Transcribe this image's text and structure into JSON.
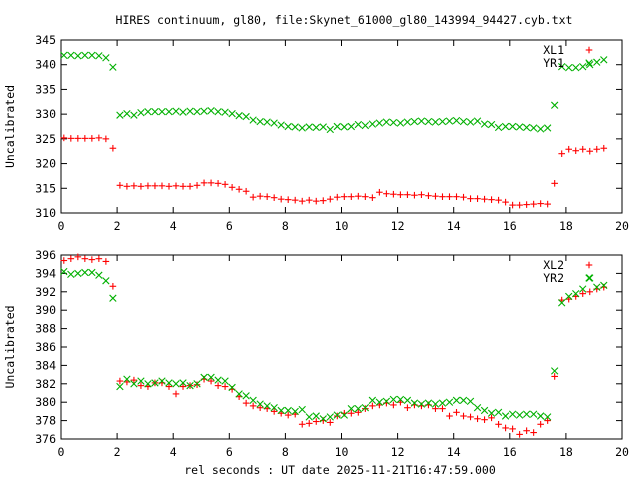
{
  "title": "HIRES continuum, gl80, file:Skynet_61000_gl80_143994_94427.cyb.txt",
  "xlabel": "rel seconds : UT date 2025-11-21T16:47:59.000",
  "chart_data": [
    {
      "type": "scatter",
      "ylabel": "Uncalibrated",
      "xlim": [
        0,
        20
      ],
      "ylim": [
        310,
        345
      ],
      "xticks": [
        0,
        2,
        4,
        6,
        8,
        10,
        12,
        14,
        16,
        18,
        20
      ],
      "yticks": [
        310,
        315,
        320,
        325,
        330,
        335,
        340,
        345
      ],
      "legend": "top-right",
      "series": [
        {
          "name": "XL1",
          "marker": "plus",
          "color": "#ff0000",
          "x": [
            0.1,
            0.35,
            0.6,
            0.85,
            1.1,
            1.35,
            1.6,
            1.85,
            2.1,
            2.35,
            2.6,
            2.85,
            3.1,
            3.35,
            3.6,
            3.85,
            4.1,
            4.35,
            4.6,
            4.85,
            5.1,
            5.35,
            5.6,
            5.85,
            6.1,
            6.35,
            6.6,
            6.85,
            7.1,
            7.35,
            7.6,
            7.85,
            8.1,
            8.35,
            8.6,
            8.85,
            9.1,
            9.35,
            9.6,
            9.85,
            10.1,
            10.35,
            10.6,
            10.85,
            11.1,
            11.35,
            11.6,
            11.85,
            12.1,
            12.35,
            12.6,
            12.85,
            13.1,
            13.35,
            13.6,
            13.85,
            14.1,
            14.35,
            14.6,
            14.85,
            15.1,
            15.35,
            15.6,
            15.85,
            16.1,
            16.35,
            16.6,
            16.85,
            17.1,
            17.35,
            17.6,
            17.85,
            18.1,
            18.35,
            18.6,
            18.85,
            19.1,
            19.35
          ],
          "y": [
            325.2,
            325.1,
            325.1,
            325.1,
            325.1,
            325.2,
            325.0,
            323.1,
            315.6,
            315.4,
            315.5,
            315.4,
            315.5,
            315.5,
            315.5,
            315.4,
            315.5,
            315.4,
            315.4,
            315.6,
            316.1,
            316.1,
            316.0,
            315.8,
            315.2,
            314.8,
            314.4,
            313.2,
            313.4,
            313.3,
            313.1,
            312.8,
            312.7,
            312.6,
            312.4,
            312.6,
            312.4,
            312.5,
            312.8,
            313.2,
            313.3,
            313.3,
            313.4,
            313.3,
            313.1,
            314.2,
            313.9,
            313.8,
            313.7,
            313.7,
            313.6,
            313.7,
            313.5,
            313.4,
            313.3,
            313.3,
            313.3,
            313.2,
            312.9,
            312.9,
            312.8,
            312.7,
            312.6,
            312.2,
            311.6,
            311.6,
            311.7,
            311.8,
            311.9,
            311.8,
            316.0,
            322.0,
            322.9,
            322.6,
            322.9,
            322.5,
            322.9,
            323.1
          ]
        },
        {
          "name": "YR1",
          "marker": "cross",
          "color": "#00b000",
          "x": [
            0.1,
            0.35,
            0.6,
            0.85,
            1.1,
            1.35,
            1.6,
            1.85,
            2.1,
            2.35,
            2.6,
            2.85,
            3.1,
            3.35,
            3.6,
            3.85,
            4.1,
            4.35,
            4.6,
            4.85,
            5.1,
            5.35,
            5.6,
            5.85,
            6.1,
            6.35,
            6.6,
            6.85,
            7.1,
            7.35,
            7.6,
            7.85,
            8.1,
            8.35,
            8.6,
            8.85,
            9.1,
            9.35,
            9.6,
            9.85,
            10.1,
            10.35,
            10.6,
            10.85,
            11.1,
            11.35,
            11.6,
            11.85,
            12.1,
            12.35,
            12.6,
            12.85,
            13.1,
            13.35,
            13.6,
            13.85,
            14.1,
            14.35,
            14.6,
            14.85,
            15.1,
            15.35,
            15.6,
            15.85,
            16.1,
            16.35,
            16.6,
            16.85,
            17.1,
            17.35,
            17.6,
            17.85,
            18.1,
            18.35,
            18.6,
            18.85,
            19.1,
            19.35
          ],
          "y": [
            341.9,
            341.9,
            341.8,
            341.9,
            341.9,
            341.8,
            341.4,
            339.5,
            329.8,
            330.1,
            329.8,
            330.3,
            330.5,
            330.5,
            330.5,
            330.5,
            330.6,
            330.4,
            330.6,
            330.5,
            330.6,
            330.7,
            330.5,
            330.4,
            330.1,
            329.7,
            329.5,
            328.8,
            328.5,
            328.4,
            328.2,
            327.8,
            327.5,
            327.4,
            327.2,
            327.4,
            327.3,
            327.4,
            326.9,
            327.5,
            327.4,
            327.5,
            327.9,
            327.7,
            328.0,
            328.2,
            328.4,
            328.3,
            328.2,
            328.4,
            328.5,
            328.6,
            328.5,
            328.4,
            328.5,
            328.6,
            328.7,
            328.5,
            328.4,
            328.6,
            328.0,
            327.9,
            327.3,
            327.5,
            327.5,
            327.4,
            327.3,
            327.2,
            327.0,
            327.2,
            331.8,
            339.6,
            339.4,
            339.4,
            339.6,
            340.0,
            340.5,
            341.0
          ]
        }
      ]
    },
    {
      "type": "scatter",
      "ylabel": "Uncalibrated",
      "xlim": [
        0,
        20
      ],
      "ylim": [
        376,
        396
      ],
      "xticks": [
        0,
        2,
        4,
        6,
        8,
        10,
        12,
        14,
        16,
        18,
        20
      ],
      "yticks": [
        376,
        378,
        380,
        382,
        384,
        386,
        388,
        390,
        392,
        394,
        396
      ],
      "legend": "top-right",
      "series": [
        {
          "name": "XL2",
          "marker": "plus",
          "color": "#ff0000",
          "x": [
            0.1,
            0.35,
            0.6,
            0.85,
            1.1,
            1.35,
            1.6,
            1.85,
            2.1,
            2.35,
            2.6,
            2.85,
            3.1,
            3.35,
            3.6,
            3.85,
            4.1,
            4.35,
            4.6,
            4.85,
            5.1,
            5.35,
            5.6,
            5.85,
            6.1,
            6.35,
            6.6,
            6.85,
            7.1,
            7.35,
            7.6,
            7.85,
            8.1,
            8.35,
            8.6,
            8.85,
            9.1,
            9.35,
            9.6,
            9.85,
            10.1,
            10.35,
            10.6,
            10.85,
            11.1,
            11.35,
            11.6,
            11.85,
            12.1,
            12.35,
            12.6,
            12.85,
            13.1,
            13.35,
            13.6,
            13.85,
            14.1,
            14.35,
            14.6,
            14.85,
            15.1,
            15.35,
            15.6,
            15.85,
            16.1,
            16.35,
            16.6,
            16.85,
            17.1,
            17.35,
            17.6,
            17.85,
            18.1,
            18.35,
            18.6,
            18.85,
            19.1,
            19.35
          ],
          "y": [
            395.4,
            395.6,
            395.8,
            395.6,
            395.5,
            395.6,
            395.3,
            392.6,
            382.3,
            382.2,
            382.4,
            381.8,
            381.7,
            382.1,
            382.1,
            381.7,
            380.9,
            381.7,
            381.8,
            381.9,
            382.5,
            382.3,
            381.8,
            381.7,
            381.4,
            380.6,
            379.9,
            379.6,
            379.4,
            379.3,
            379.0,
            378.8,
            378.6,
            378.7,
            377.6,
            377.7,
            377.9,
            378.0,
            377.8,
            378.5,
            378.8,
            378.8,
            378.9,
            379.3,
            379.6,
            379.7,
            379.9,
            379.7,
            380.0,
            379.4,
            379.7,
            379.6,
            379.7,
            379.3,
            379.3,
            378.5,
            378.9,
            378.5,
            378.4,
            378.2,
            378.1,
            378.3,
            377.6,
            377.2,
            377.1,
            376.5,
            376.9,
            376.7,
            377.6,
            378.0,
            382.8,
            391.1,
            391.2,
            391.5,
            391.8,
            392.0,
            392.3,
            392.5
          ]
        },
        {
          "name": "YR2",
          "marker": "cross",
          "color": "#00b000",
          "x": [
            0.1,
            0.35,
            0.6,
            0.85,
            1.1,
            1.35,
            1.6,
            1.85,
            2.1,
            2.35,
            2.6,
            2.85,
            3.1,
            3.35,
            3.6,
            3.85,
            4.1,
            4.35,
            4.6,
            4.85,
            5.1,
            5.35,
            5.6,
            5.85,
            6.1,
            6.35,
            6.6,
            6.85,
            7.1,
            7.35,
            7.6,
            7.85,
            8.1,
            8.35,
            8.6,
            8.85,
            9.1,
            9.35,
            9.6,
            9.85,
            10.1,
            10.35,
            10.6,
            10.85,
            11.1,
            11.35,
            11.6,
            11.85,
            12.1,
            12.35,
            12.6,
            12.85,
            13.1,
            13.35,
            13.6,
            13.85,
            14.1,
            14.35,
            14.6,
            14.85,
            15.1,
            15.35,
            15.6,
            15.85,
            16.1,
            16.35,
            16.6,
            16.85,
            17.1,
            17.35,
            17.6,
            17.85,
            18.1,
            18.35,
            18.6,
            18.85,
            19.1,
            19.35
          ],
          "y": [
            394.2,
            393.9,
            394.0,
            394.1,
            394.1,
            393.8,
            393.2,
            391.3,
            381.7,
            382.5,
            382.0,
            382.3,
            382.0,
            382.1,
            382.3,
            382.1,
            382.0,
            382.1,
            381.8,
            382.0,
            382.7,
            382.7,
            382.4,
            382.3,
            381.6,
            380.9,
            380.7,
            380.2,
            379.8,
            379.6,
            379.4,
            379.1,
            379.1,
            379.0,
            379.2,
            378.4,
            378.5,
            378.2,
            378.4,
            378.6,
            378.6,
            379.3,
            379.3,
            379.4,
            380.2,
            380.0,
            380.1,
            380.3,
            380.3,
            380.2,
            379.9,
            379.8,
            379.9,
            379.8,
            379.9,
            380.0,
            380.2,
            380.2,
            380.1,
            379.4,
            379.1,
            378.8,
            378.9,
            378.5,
            378.7,
            378.6,
            378.7,
            378.7,
            378.5,
            378.4,
            383.4,
            390.8,
            391.5,
            391.8,
            392.3,
            393.5,
            392.5,
            392.7
          ]
        }
      ]
    }
  ]
}
